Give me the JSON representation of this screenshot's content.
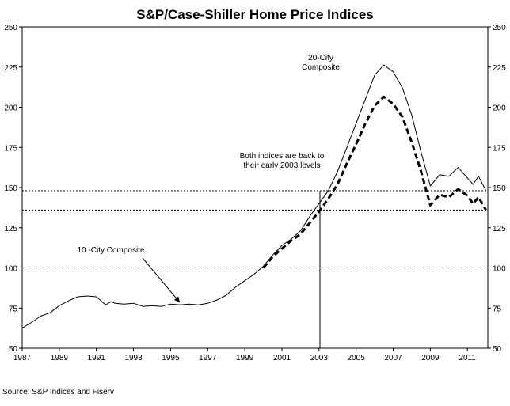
{
  "chart_data": {
    "type": "line",
    "title": "S&P/Case-Shiller Home Price Indices",
    "xlabel": "",
    "ylabel": "",
    "xlim": [
      1987,
      2012.1
    ],
    "ylim": [
      50,
      250
    ],
    "x_ticks": [
      1987,
      1989,
      1991,
      1993,
      1995,
      1997,
      1999,
      2001,
      2003,
      2005,
      2007,
      2009,
      2011
    ],
    "x_tick_labels": [
      "1987",
      "1989",
      "1991",
      "1993",
      "1995",
      "1997",
      "1999",
      "2001",
      "2003",
      "2005",
      "2007",
      "2009",
      "2011"
    ],
    "y_ticks": [
      50,
      75,
      100,
      125,
      150,
      175,
      200,
      225,
      250
    ],
    "y_tick_labels": [
      "50",
      "75",
      "100",
      "125",
      "150",
      "175",
      "200",
      "225",
      "250"
    ],
    "grid": false,
    "reference_lines": [
      {
        "y": 148,
        "style": "dotted"
      },
      {
        "y": 136,
        "style": "dotted"
      },
      {
        "y": 100,
        "style": "dotted"
      }
    ],
    "vertical_marker": {
      "x": 2003.05,
      "from": 50,
      "to": 148
    },
    "series": [
      {
        "name": "10 -City Composite",
        "style": "solid",
        "points": [
          [
            1987.0,
            62.5
          ],
          [
            1987.5,
            66
          ],
          [
            1988.0,
            70
          ],
          [
            1988.5,
            72
          ],
          [
            1989.0,
            76.5
          ],
          [
            1989.5,
            79.5
          ],
          [
            1990.0,
            82
          ],
          [
            1990.5,
            82.5
          ],
          [
            1991.0,
            82
          ],
          [
            1991.3,
            79
          ],
          [
            1991.5,
            77
          ],
          [
            1991.8,
            79
          ],
          [
            1992.0,
            78
          ],
          [
            1992.5,
            77.5
          ],
          [
            1993.0,
            78
          ],
          [
            1993.5,
            76
          ],
          [
            1994.0,
            76.5
          ],
          [
            1994.5,
            76
          ],
          [
            1995.0,
            77.5
          ],
          [
            1995.5,
            77
          ],
          [
            1996.0,
            77.5
          ],
          [
            1996.5,
            77
          ],
          [
            1997.0,
            78
          ],
          [
            1997.5,
            80
          ],
          [
            1998.0,
            83
          ],
          [
            1998.5,
            88
          ],
          [
            1999.0,
            92
          ],
          [
            1999.5,
            96
          ],
          [
            2000.0,
            101
          ],
          [
            2000.5,
            108
          ],
          [
            2001.0,
            114
          ],
          [
            2001.5,
            118
          ],
          [
            2002.0,
            123
          ],
          [
            2002.5,
            132
          ],
          [
            2003.0,
            140
          ],
          [
            2003.5,
            148
          ],
          [
            2004.0,
            160
          ],
          [
            2004.5,
            175
          ],
          [
            2005.0,
            190
          ],
          [
            2005.5,
            205
          ],
          [
            2006.0,
            220
          ],
          [
            2006.5,
            226.3
          ],
          [
            2007.0,
            222
          ],
          [
            2007.5,
            212
          ],
          [
            2008.0,
            195
          ],
          [
            2008.5,
            172
          ],
          [
            2009.0,
            151
          ],
          [
            2009.5,
            158
          ],
          [
            2010.0,
            157
          ],
          [
            2010.5,
            162.5
          ],
          [
            2011.0,
            156
          ],
          [
            2011.3,
            152
          ],
          [
            2011.6,
            157
          ],
          [
            2012.0,
            148
          ]
        ]
      },
      {
        "name": "20-City Composite",
        "style": "dashed",
        "points": [
          [
            2000.0,
            100
          ],
          [
            2000.5,
            107
          ],
          [
            2001.0,
            112
          ],
          [
            2001.5,
            117
          ],
          [
            2002.0,
            121
          ],
          [
            2002.5,
            128
          ],
          [
            2003.0,
            135
          ],
          [
            2003.5,
            143
          ],
          [
            2004.0,
            152
          ],
          [
            2004.5,
            165
          ],
          [
            2005.0,
            177
          ],
          [
            2005.5,
            190
          ],
          [
            2006.0,
            201
          ],
          [
            2006.5,
            206.5
          ],
          [
            2007.0,
            202
          ],
          [
            2007.5,
            194
          ],
          [
            2008.0,
            178
          ],
          [
            2008.5,
            160
          ],
          [
            2009.0,
            139
          ],
          [
            2009.5,
            145.5
          ],
          [
            2010.0,
            144
          ],
          [
            2010.5,
            149
          ],
          [
            2011.0,
            145
          ],
          [
            2011.3,
            140
          ],
          [
            2011.6,
            144
          ],
          [
            2012.0,
            136
          ]
        ]
      }
    ],
    "annotations": [
      {
        "id": "twenty-city",
        "lines": [
          "20-City",
          "Composite"
        ]
      },
      {
        "id": "both-indices",
        "lines": [
          "Both indices are back to",
          "their early 2003 levels"
        ]
      },
      {
        "id": "ten-city",
        "lines": [
          "10 -City Composite"
        ]
      }
    ],
    "source": "Source: S&P Indices and Fiserv"
  }
}
